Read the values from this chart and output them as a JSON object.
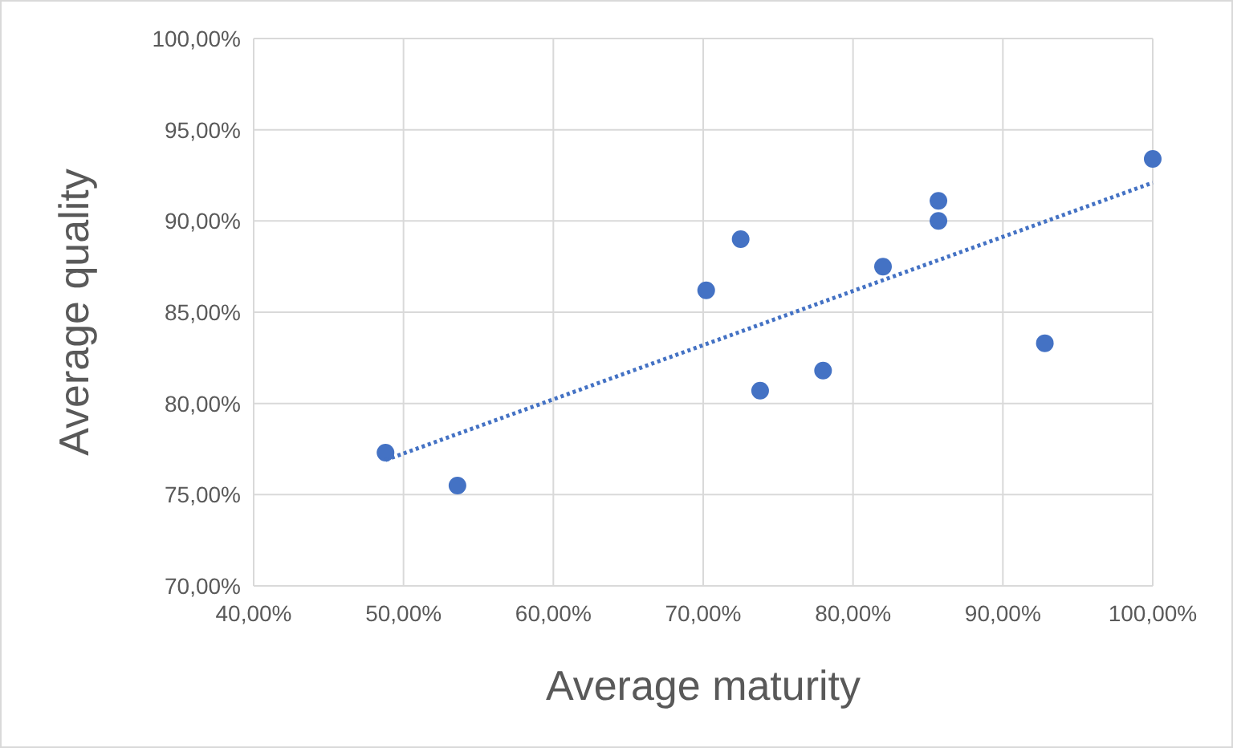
{
  "chart_data": {
    "type": "scatter",
    "xlabel": "Average maturity",
    "ylabel": "Average quality",
    "xlim": [
      40,
      100
    ],
    "ylim": [
      70,
      100
    ],
    "xticks": [
      {
        "value": 40,
        "label": "40,00%"
      },
      {
        "value": 50,
        "label": "50,00%"
      },
      {
        "value": 60,
        "label": "60,00%"
      },
      {
        "value": 70,
        "label": "70,00%"
      },
      {
        "value": 80,
        "label": "80,00%"
      },
      {
        "value": 90,
        "label": "90,00%"
      },
      {
        "value": 100,
        "label": "100,00%"
      }
    ],
    "yticks": [
      {
        "value": 70,
        "label": "70,00%"
      },
      {
        "value": 75,
        "label": "75,00%"
      },
      {
        "value": 80,
        "label": "80,00%"
      },
      {
        "value": 85,
        "label": "85,00%"
      },
      {
        "value": 90,
        "label": "90,00%"
      },
      {
        "value": 95,
        "label": "95,00%"
      },
      {
        "value": 100,
        "label": "100,00%"
      }
    ],
    "grid": true,
    "marker": "circle",
    "series": [
      {
        "color": "#4472c4",
        "x": [
          48.8,
          53.6,
          70.2,
          72.5,
          73.8,
          78.0,
          82.0,
          85.7,
          85.7,
          92.8,
          100
        ],
        "values": [
          77.3,
          75.5,
          86.2,
          89.0,
          80.7,
          81.8,
          87.5,
          91.1,
          90.0,
          83.3,
          93.4
        ]
      },
      {
        "type": "line",
        "color": "#4472c4",
        "line_style": "dotted",
        "marker": "none",
        "x": [
          48.8,
          100
        ],
        "values": [
          76.9,
          92.1
        ]
      }
    ]
  }
}
